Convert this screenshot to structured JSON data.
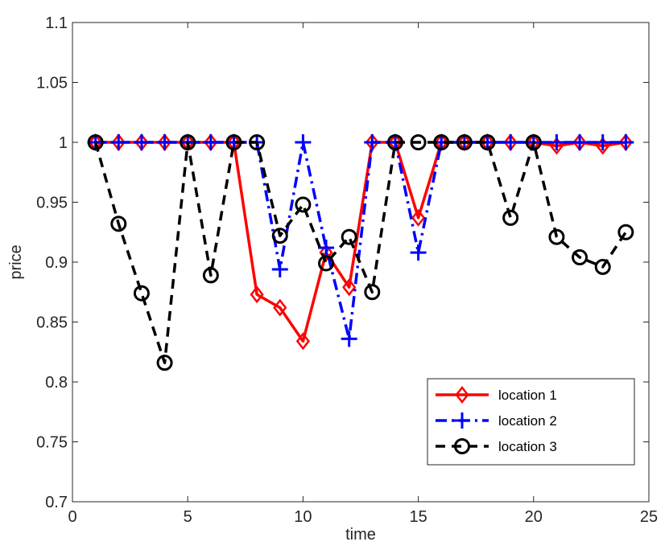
{
  "chart_data": {
    "type": "line",
    "title": "",
    "xlabel": "time",
    "ylabel": "price",
    "xlim": [
      0,
      25
    ],
    "ylim": [
      0.7,
      1.1
    ],
    "xticks": [
      0,
      5,
      10,
      15,
      20,
      25
    ],
    "yticks": [
      0.7,
      0.75,
      0.8,
      0.85,
      0.9,
      0.95,
      1,
      1.05,
      1.1
    ],
    "xtick_labels": [
      "0",
      "5",
      "10",
      "15",
      "20",
      "25"
    ],
    "ytick_labels": [
      "0.7",
      "0.75",
      "0.8",
      "0.85",
      "0.9",
      "0.95",
      "1",
      "1.05",
      "1.1"
    ],
    "grid": false,
    "legend_position": "bottom-right",
    "x": [
      1,
      2,
      3,
      4,
      5,
      6,
      7,
      8,
      9,
      10,
      11,
      12,
      13,
      14,
      15,
      16,
      17,
      18,
      19,
      20,
      21,
      22,
      23,
      24
    ],
    "series": [
      {
        "name": "location 1",
        "color": "#ff0000",
        "line_style": "solid",
        "marker": "diamond",
        "values": [
          1,
          1,
          1,
          1,
          1,
          1,
          1,
          0.873,
          0.862,
          0.834,
          0.908,
          0.879,
          1,
          1,
          0.937,
          1,
          1,
          1,
          1,
          1,
          0.997,
          1,
          0.997,
          1
        ]
      },
      {
        "name": "location 2",
        "color": "#0000ff",
        "line_style": "dashdot",
        "marker": "plus",
        "values": [
          1,
          1,
          1,
          1,
          1,
          1,
          1,
          1,
          0.894,
          1,
          0.912,
          0.836,
          1,
          1,
          0.908,
          1,
          1,
          1,
          1,
          1,
          1,
          1,
          1,
          1
        ]
      },
      {
        "name": "location 3",
        "color": "#000000",
        "line_style": "dashed",
        "marker": "circle",
        "values": [
          1,
          0.932,
          0.874,
          0.816,
          1,
          0.889,
          1,
          1,
          0.922,
          0.948,
          0.899,
          0.921,
          0.875,
          1,
          1,
          1,
          1,
          1,
          0.937,
          1,
          0.921,
          0.904,
          0.896,
          0.925
        ]
      }
    ]
  }
}
